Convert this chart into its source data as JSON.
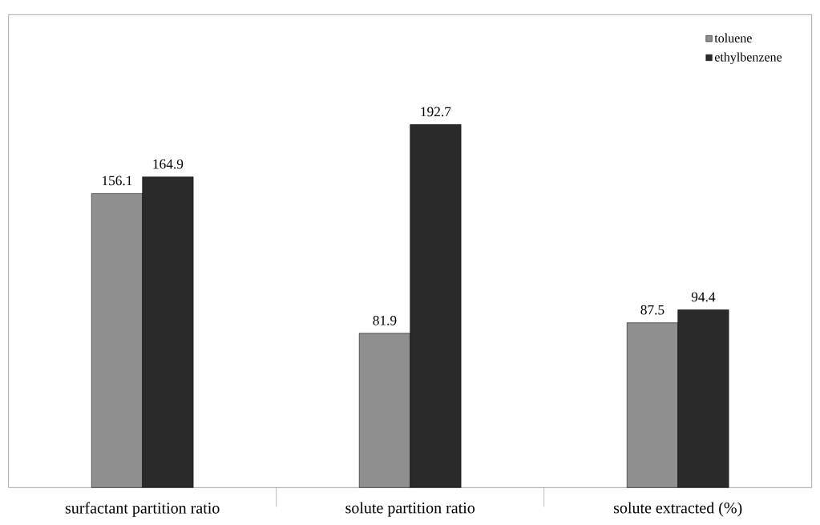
{
  "chart_data": {
    "type": "bar",
    "categories": [
      "surfactant  partition ratio",
      "solute partition ratio",
      "solute extracted (%)"
    ],
    "series": [
      {
        "name": "toluene",
        "color": "#8f8f8f",
        "values": [
          156.1,
          81.9,
          87.5
        ]
      },
      {
        "name": "ethylbenzene",
        "color": "#2a2a2a",
        "values": [
          164.9,
          192.7,
          94.4
        ]
      }
    ],
    "ylim": [
      0,
      251
    ],
    "data_labels": true,
    "legend": "top right"
  }
}
